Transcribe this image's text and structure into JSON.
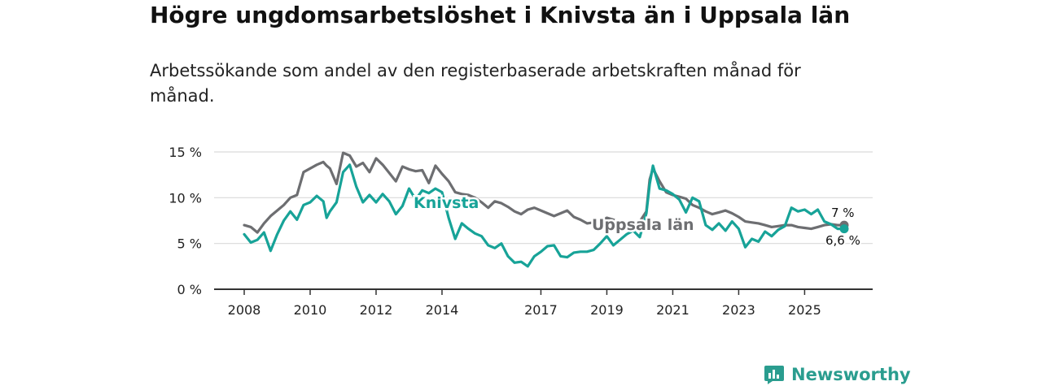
{
  "title": "Högre ungdomsarbetslöshet i Knivsta än i Uppsala län",
  "subtitle": "Arbetssökande som andel av den registerbaserade arbetskraften månad för månad.",
  "brand": "Newsworthy",
  "colors": {
    "knivsta": "#17a398",
    "uppsala": "#6d6e71",
    "grid": "#d9d9d9",
    "axis": "#333333"
  },
  "chart_data": {
    "type": "line",
    "title": "Högre ungdomsarbetslöshet i Knivsta än i Uppsala län",
    "ylim": [
      0,
      15
    ],
    "yticks": [
      0,
      5,
      10,
      15
    ],
    "ytick_labels": [
      "0 %",
      "5 %",
      "10 %",
      "15 %"
    ],
    "xlim": [
      2007.5,
      2026.8
    ],
    "xticks": [
      2008,
      2010,
      2012,
      2014,
      2017,
      2019,
      2021,
      2023,
      2025
    ],
    "xtick_labels": [
      "2008",
      "2010",
      "2012",
      "2014",
      "2017",
      "2019",
      "2021",
      "2023",
      "2025"
    ],
    "series": [
      {
        "name": "Uppsala län",
        "label": "Uppsala län",
        "end_label": "7 %",
        "x": [
          2008.0,
          2008.2,
          2008.4,
          2008.6,
          2008.8,
          2009.0,
          2009.2,
          2009.4,
          2009.6,
          2009.8,
          2010.0,
          2010.2,
          2010.4,
          2010.5,
          2010.6,
          2010.8,
          2011.0,
          2011.2,
          2011.4,
          2011.6,
          2011.8,
          2012.0,
          2012.2,
          2012.4,
          2012.6,
          2012.8,
          2013.0,
          2013.2,
          2013.4,
          2013.6,
          2013.8,
          2014.0,
          2014.2,
          2014.4,
          2014.6,
          2014.8,
          2015.0,
          2015.2,
          2015.4,
          2015.6,
          2015.8,
          2016.0,
          2016.2,
          2016.4,
          2016.6,
          2016.8,
          2017.0,
          2017.2,
          2017.4,
          2017.6,
          2017.8,
          2018.0,
          2018.2,
          2018.4,
          2018.6,
          2018.8,
          2019.0,
          2019.2,
          2019.4,
          2019.6,
          2019.8,
          2020.0,
          2020.2,
          2020.3,
          2020.4,
          2020.6,
          2020.8,
          2021.0,
          2021.2,
          2021.4,
          2021.6,
          2021.8,
          2022.0,
          2022.2,
          2022.4,
          2022.6,
          2022.8,
          2023.0,
          2023.2,
          2023.4,
          2023.6,
          2023.8,
          2024.0,
          2024.2,
          2024.4,
          2024.6,
          2024.8,
          2025.0,
          2025.2,
          2025.4,
          2025.6,
          2025.8,
          2026.0,
          2026.2
        ],
        "values": [
          7.0,
          6.8,
          6.2,
          7.2,
          8.0,
          8.6,
          9.2,
          10.0,
          10.3,
          12.8,
          13.2,
          13.6,
          13.9,
          13.5,
          13.2,
          11.5,
          14.9,
          14.6,
          13.4,
          13.8,
          12.8,
          14.3,
          13.6,
          12.7,
          11.8,
          13.4,
          13.1,
          12.9,
          13.0,
          11.6,
          13.5,
          12.6,
          11.8,
          10.6,
          10.4,
          10.3,
          10.0,
          9.5,
          8.9,
          9.6,
          9.4,
          9.0,
          8.5,
          8.2,
          8.7,
          8.9,
          8.6,
          8.3,
          8.0,
          8.3,
          8.6,
          7.9,
          7.6,
          7.2,
          7.3,
          7.5,
          7.8,
          7.6,
          7.2,
          7.1,
          7.3,
          7.4,
          8.5,
          12.0,
          13.2,
          11.8,
          10.6,
          10.3,
          10.1,
          9.9,
          9.2,
          8.9,
          8.5,
          8.2,
          8.4,
          8.6,
          8.3,
          7.9,
          7.4,
          7.3,
          7.2,
          7.0,
          6.8,
          6.9,
          7.0,
          7.0,
          6.8,
          6.7,
          6.6,
          6.8,
          7.0,
          7.1,
          7.0,
          7.0
        ]
      },
      {
        "name": "Knivsta",
        "label": "Knivsta",
        "end_label": "6,6 %",
        "x": [
          2008.0,
          2008.2,
          2008.4,
          2008.6,
          2008.8,
          2009.0,
          2009.2,
          2009.4,
          2009.6,
          2009.8,
          2010.0,
          2010.2,
          2010.4,
          2010.5,
          2010.6,
          2010.8,
          2011.0,
          2011.2,
          2011.4,
          2011.6,
          2011.8,
          2012.0,
          2012.2,
          2012.4,
          2012.6,
          2012.8,
          2013.0,
          2013.2,
          2013.4,
          2013.6,
          2013.8,
          2014.0,
          2014.2,
          2014.4,
          2014.6,
          2014.8,
          2015.0,
          2015.2,
          2015.4,
          2015.6,
          2015.8,
          2016.0,
          2016.2,
          2016.4,
          2016.6,
          2016.8,
          2017.0,
          2017.2,
          2017.4,
          2017.6,
          2017.8,
          2018.0,
          2018.2,
          2018.4,
          2018.6,
          2018.8,
          2019.0,
          2019.2,
          2019.4,
          2019.6,
          2019.8,
          2020.0,
          2020.2,
          2020.3,
          2020.4,
          2020.6,
          2020.8,
          2021.0,
          2021.2,
          2021.4,
          2021.6,
          2021.8,
          2022.0,
          2022.2,
          2022.4,
          2022.6,
          2022.8,
          2023.0,
          2023.2,
          2023.4,
          2023.6,
          2023.8,
          2024.0,
          2024.2,
          2024.4,
          2024.6,
          2024.8,
          2025.0,
          2025.2,
          2025.4,
          2025.6,
          2025.8,
          2026.0,
          2026.2
        ],
        "values": [
          6.0,
          5.1,
          5.4,
          6.2,
          4.2,
          6.0,
          7.5,
          8.5,
          7.6,
          9.2,
          9.5,
          10.2,
          9.6,
          7.8,
          8.5,
          9.5,
          12.8,
          13.6,
          11.2,
          9.5,
          10.3,
          9.5,
          10.4,
          9.6,
          8.2,
          9.1,
          11.0,
          9.8,
          10.8,
          10.5,
          11.0,
          10.6,
          7.8,
          5.5,
          7.2,
          6.6,
          6.1,
          5.8,
          4.8,
          4.5,
          5.0,
          3.6,
          2.9,
          3.0,
          2.5,
          3.6,
          4.1,
          4.7,
          4.8,
          3.6,
          3.5,
          4.0,
          4.1,
          4.1,
          4.3,
          5.0,
          5.8,
          4.8,
          5.4,
          6.0,
          6.4,
          5.7,
          8.3,
          11.5,
          13.5,
          11.0,
          10.8,
          10.4,
          9.8,
          8.4,
          10.0,
          9.6,
          7.0,
          6.5,
          7.2,
          6.4,
          7.4,
          6.6,
          4.6,
          5.5,
          5.2,
          6.3,
          5.8,
          6.5,
          6.9,
          8.9,
          8.5,
          8.7,
          8.2,
          8.7,
          7.4,
          7.1,
          6.6,
          6.6
        ]
      }
    ]
  }
}
